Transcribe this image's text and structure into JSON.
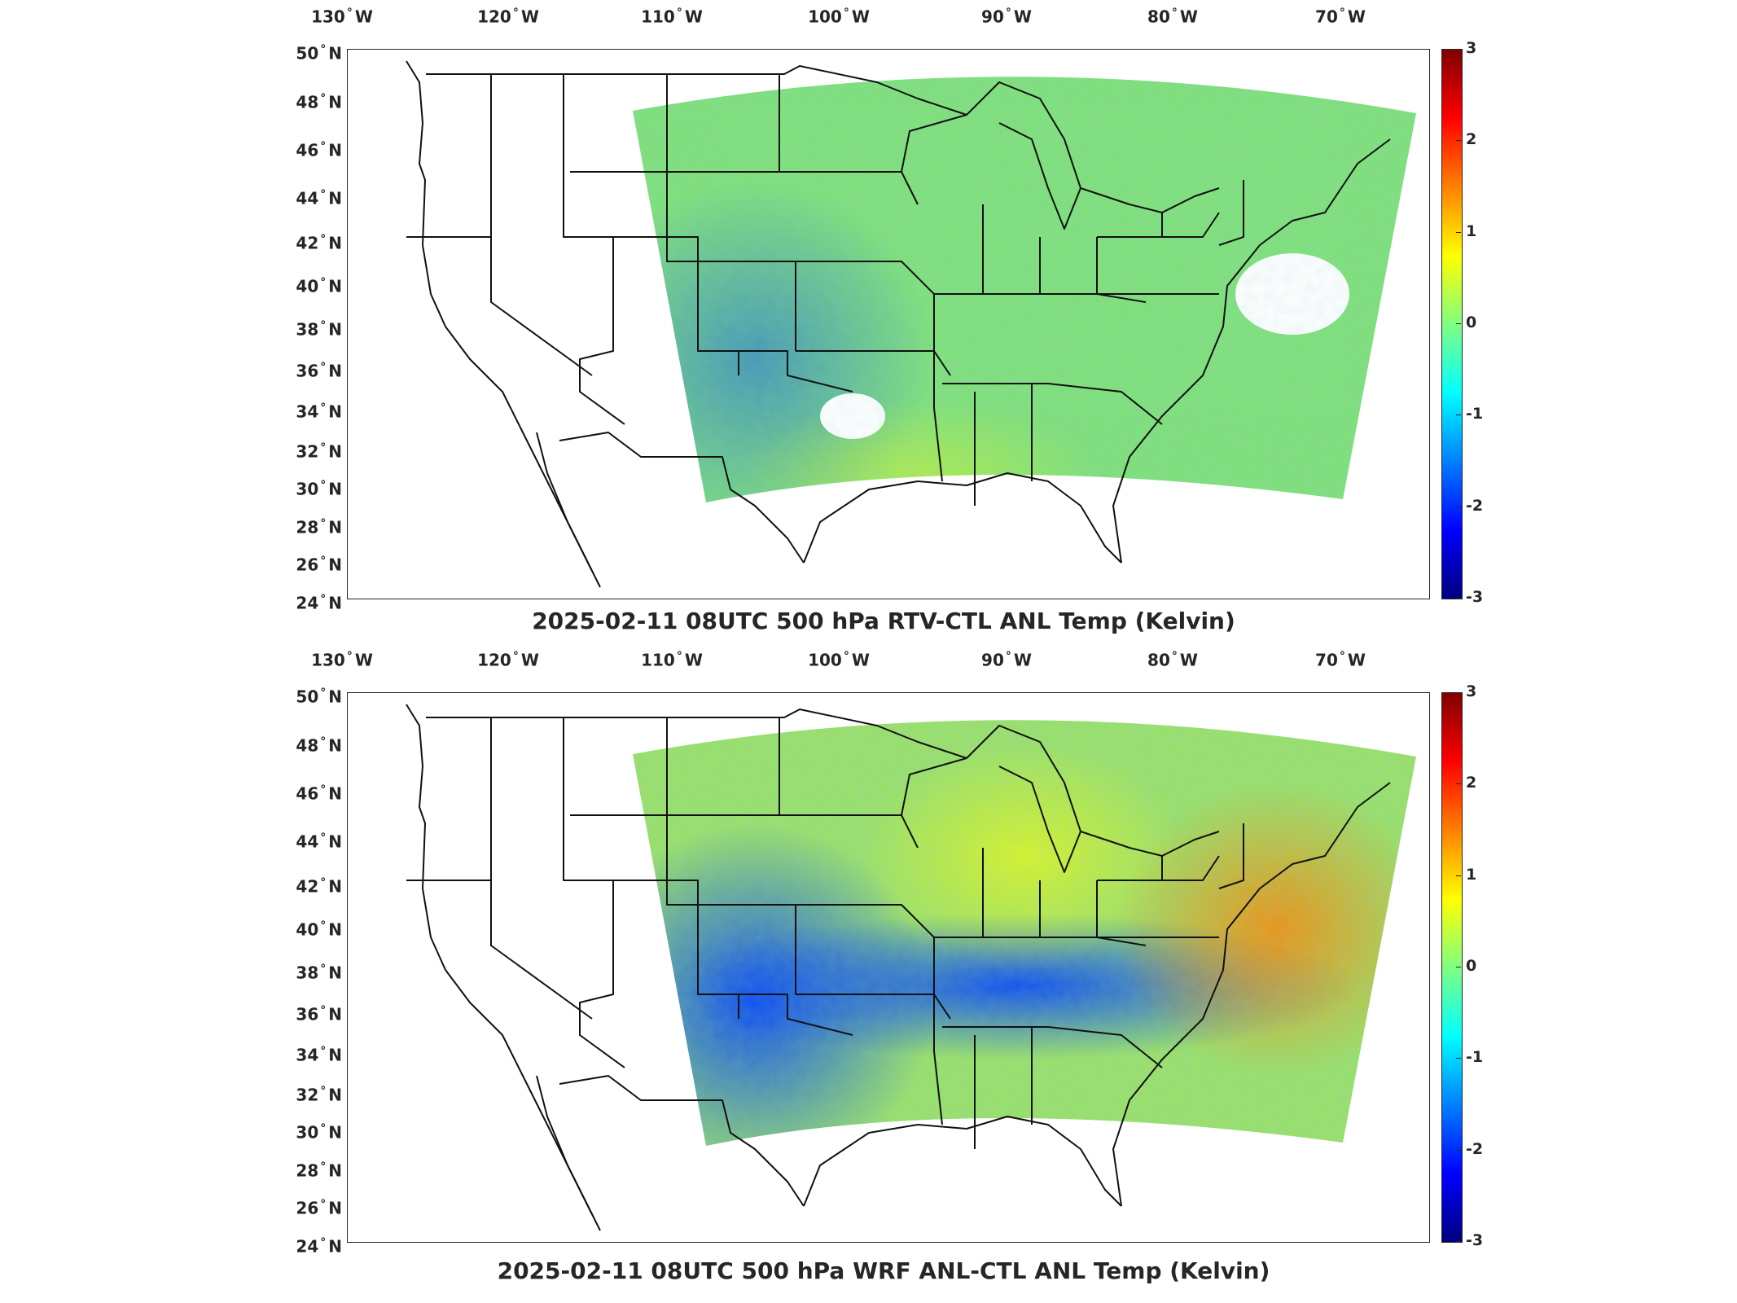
{
  "figure": {
    "colorbar": {
      "min": -3,
      "max": 3,
      "ticks": [
        "3",
        "2",
        "1",
        "0",
        "-1",
        "-2",
        "-3"
      ],
      "colormap": [
        "#000080",
        "#0000ff",
        "#0080ff",
        "#00ffff",
        "#80ff80",
        "#ffff00",
        "#ff8000",
        "#ff0000",
        "#800000"
      ]
    },
    "lon_ticks": [
      "130",
      "120",
      "110",
      "100",
      "90",
      "80",
      "70"
    ],
    "lon_hemisphere": "W",
    "lat_ticks": [
      "50",
      "48",
      "46",
      "44",
      "42",
      "40",
      "38",
      "36",
      "34",
      "32",
      "30",
      "28",
      "26",
      "24"
    ],
    "lat_hemisphere": "N",
    "degree_symbol": "°",
    "panels": [
      {
        "title": "2025-02-11 08UTC 500 hPa RTV-CTL ANL Temp (Kelvin)",
        "field_description": "near-zero differences",
        "base_color": "#7fe07a",
        "anomalies": [
          {
            "type": "blue",
            "strength": 0.45,
            "region": "southwest"
          },
          {
            "type": "yellow",
            "strength": 0.35,
            "region": "south-texas"
          },
          {
            "type": "missing",
            "region": "west-texas"
          },
          {
            "type": "missing",
            "region": "mid-atlantic-offshore"
          }
        ]
      },
      {
        "title": "2025-02-11 08UTC 500 hPa WRF ANL-CTL ANL Temp (Kelvin)",
        "field_description": "cold anomaly over central/southwest, warm anomaly mid-atlantic",
        "base_color": "#9ae06a",
        "anomalies": [
          {
            "type": "blue",
            "strength": 0.9,
            "region": "southwest"
          },
          {
            "type": "blue",
            "strength": 0.9,
            "region": "central-band"
          },
          {
            "type": "yellow",
            "strength": 0.6,
            "region": "great-lakes"
          },
          {
            "type": "orange",
            "strength": 0.8,
            "region": "mid-atlantic"
          }
        ]
      }
    ]
  }
}
